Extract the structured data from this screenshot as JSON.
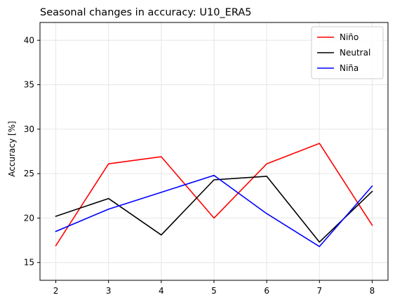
{
  "chart_data": {
    "type": "line",
    "title": "Seasonal changes in accuracy: U10_ERA5",
    "xlabel": "",
    "ylabel": "Accuracy [%]",
    "x": [
      2,
      3,
      4,
      5,
      6,
      7,
      8
    ],
    "xlim": [
      1.7,
      8.3
    ],
    "ylim": [
      13,
      42
    ],
    "xticks": [
      2,
      3,
      4,
      5,
      6,
      7,
      8
    ],
    "yticks": [
      15,
      20,
      25,
      30,
      35,
      40
    ],
    "grid": true,
    "legend_position": "top-right",
    "series": [
      {
        "name": "Niño",
        "color": "#ff0000",
        "values": [
          16.9,
          26.1,
          26.9,
          20.0,
          26.1,
          28.4,
          19.2
        ]
      },
      {
        "name": "Neutral",
        "color": "#000000",
        "values": [
          20.2,
          22.2,
          18.1,
          24.3,
          24.7,
          17.3,
          23.0
        ]
      },
      {
        "name": "Niña",
        "color": "#0000ff",
        "values": [
          18.5,
          21.0,
          22.9,
          24.8,
          20.5,
          16.8,
          23.6
        ]
      }
    ]
  }
}
